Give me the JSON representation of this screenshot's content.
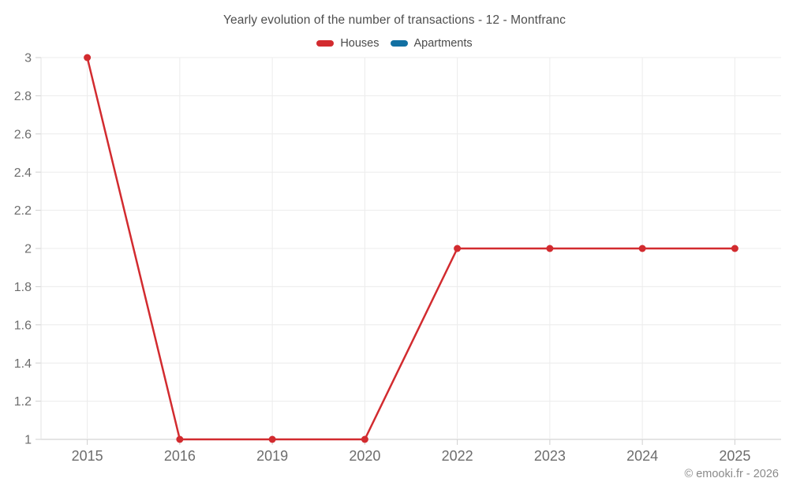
{
  "title": "Yearly evolution of the number of transactions - 12 - Montfranc",
  "footer": "© emooki.fr - 2026",
  "legend": [
    {
      "id": "houses",
      "label": "Houses",
      "color": "#d22b2f"
    },
    {
      "id": "apartments",
      "label": "Apartments",
      "color": "#1270a2"
    }
  ],
  "chart_data": {
    "type": "line",
    "title": "Yearly evolution of the number of transactions - 12 - Montfranc",
    "categories": [
      "2015",
      "2016",
      "2019",
      "2020",
      "2022",
      "2023",
      "2024",
      "2025"
    ],
    "series": [
      {
        "name": "Houses",
        "color": "#d22b2f",
        "values": [
          3,
          1,
          1,
          1,
          2,
          2,
          2,
          2
        ]
      },
      {
        "name": "Apartments",
        "color": "#1270a2",
        "values": []
      }
    ],
    "xlabel": "",
    "ylabel": "",
    "ylim": [
      1,
      3
    ],
    "ytick_step": 0.2,
    "grid": true,
    "legend_position": "top",
    "colors": {
      "gridline": "#ececec",
      "baseline": "#c9c9c9",
      "axis_line": "#e3e3e3",
      "tick": "#cfcfcf",
      "tick_label": "#6d6d6d"
    }
  }
}
